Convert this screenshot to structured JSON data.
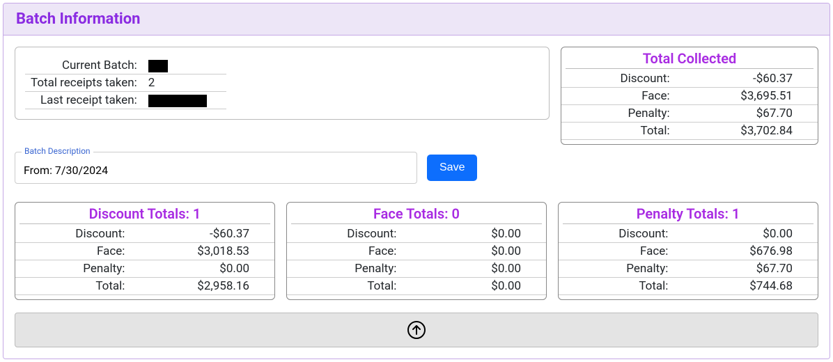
{
  "panel": {
    "title": "Batch Information"
  },
  "info": {
    "rows": [
      {
        "label": "Current Batch:",
        "redacted": true,
        "rw": "w1"
      },
      {
        "label": "Total receipts taken:",
        "value": "2"
      },
      {
        "label": "Last receipt taken:",
        "redacted": true,
        "rw": "w2"
      }
    ]
  },
  "totalCollected": {
    "title": "Total Collected",
    "rows": [
      {
        "label": "Discount:",
        "amount": "-$60.37"
      },
      {
        "label": "Face:",
        "amount": "$3,695.51"
      },
      {
        "label": "Penalty:",
        "amount": "$67.70"
      },
      {
        "label": "Total:",
        "amount": "$3,702.84"
      }
    ]
  },
  "description": {
    "label": "Batch Description",
    "value": "From: 7/30/2024",
    "saveLabel": "Save"
  },
  "subTotals": [
    {
      "title": "Discount Totals: 1",
      "rows": [
        {
          "label": "Discount:",
          "amount": "-$60.37"
        },
        {
          "label": "Face:",
          "amount": "$3,018.53"
        },
        {
          "label": "Penalty:",
          "amount": "$0.00"
        },
        {
          "label": "Total:",
          "amount": "$2,958.16"
        }
      ]
    },
    {
      "title": "Face Totals: 0",
      "rows": [
        {
          "label": "Discount:",
          "amount": "$0.00"
        },
        {
          "label": "Face:",
          "amount": "$0.00"
        },
        {
          "label": "Penalty:",
          "amount": "$0.00"
        },
        {
          "label": "Total:",
          "amount": "$0.00"
        }
      ]
    },
    {
      "title": "Penalty Totals: 1",
      "rows": [
        {
          "label": "Discount:",
          "amount": "$0.00"
        },
        {
          "label": "Face:",
          "amount": "$676.98"
        },
        {
          "label": "Penalty:",
          "amount": "$67.70"
        },
        {
          "label": "Total:",
          "amount": "$744.68"
        }
      ]
    }
  ],
  "colors": {
    "accent": "#8a2be2",
    "buttonPrimary": "#0d6efd",
    "headerBg": "#ede6f7",
    "headerBorder": "#c5a8e6"
  }
}
